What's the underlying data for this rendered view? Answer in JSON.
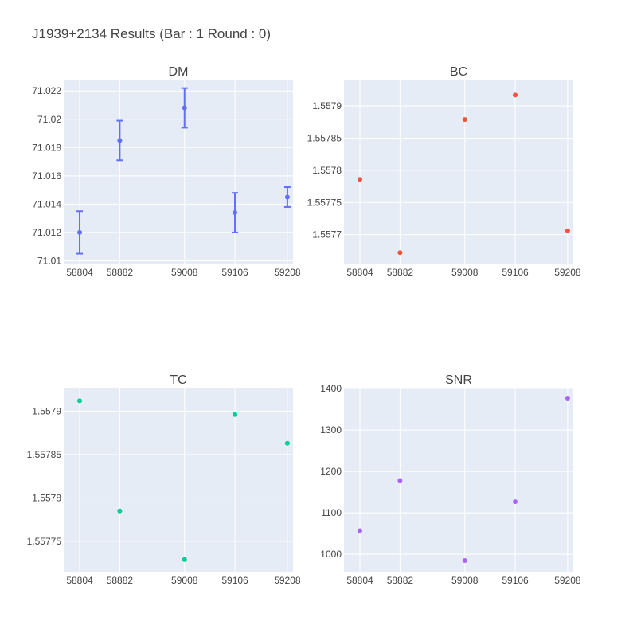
{
  "title": "J1939+2134 Results (Bar : 1 Round : 0)",
  "colors": {
    "plot_bg": "#E5ECF6",
    "grid": "#ffffff",
    "text": "#444444",
    "dm": "#636EFA",
    "bc": "#EF553B",
    "tc": "#00CC96",
    "snr": "#AB63FA"
  },
  "chart_data": [
    {
      "type": "scatter",
      "title": "DM",
      "x": [
        58804,
        58882,
        59008,
        59106,
        59208
      ],
      "y": [
        71.012,
        71.0185,
        71.0208,
        71.0134,
        71.0145
      ],
      "error_y": [
        0.0015,
        0.0014,
        0.0014,
        0.0014,
        0.0007
      ],
      "xticks": [
        "58804",
        "58882",
        "59008",
        "59106",
        "59208"
      ],
      "yticks": [
        "71.01",
        "71.012",
        "71.014",
        "71.016",
        "71.018",
        "71.02",
        "71.022"
      ],
      "xlim": [
        58773,
        59219
      ],
      "ylim": [
        71.0098,
        71.0228
      ],
      "grid": true
    },
    {
      "type": "scatter",
      "title": "BC",
      "x": [
        58804,
        58882,
        59008,
        59106,
        59208
      ],
      "y": [
        1.557786,
        1.557672,
        1.557879,
        1.557917,
        1.557706
      ],
      "xticks": [
        "58804",
        "58882",
        "59008",
        "59106",
        "59208"
      ],
      "yticks": [
        "1.5577",
        "1.55775",
        "1.5578",
        "1.55785",
        "1.5579"
      ],
      "xlim": [
        58773,
        59219
      ],
      "ylim": [
        1.557655,
        1.557941
      ],
      "grid": true
    },
    {
      "type": "scatter",
      "title": "TC",
      "x": [
        58804,
        58882,
        59008,
        59106,
        59208
      ],
      "y": [
        1.557912,
        1.557785,
        1.557729,
        1.557896,
        1.557863
      ],
      "xticks": [
        "58804",
        "58882",
        "59008",
        "59106",
        "59208"
      ],
      "yticks": [
        "1.55775",
        "1.5578",
        "1.55785",
        "1.5579"
      ],
      "xlim": [
        58773,
        59219
      ],
      "ylim": [
        1.557715,
        1.557927
      ],
      "grid": true
    },
    {
      "type": "scatter",
      "title": "SNR",
      "x": [
        58804,
        58882,
        59008,
        59106,
        59208
      ],
      "y": [
        1057,
        1178,
        985,
        1127,
        1377
      ],
      "xticks": [
        "58804",
        "58882",
        "59008",
        "59106",
        "59208"
      ],
      "yticks": [
        "1000",
        "1100",
        "1200",
        "1300",
        "1400"
      ],
      "xlim": [
        58773,
        59219
      ],
      "ylim": [
        958,
        1402
      ],
      "grid": true
    }
  ]
}
